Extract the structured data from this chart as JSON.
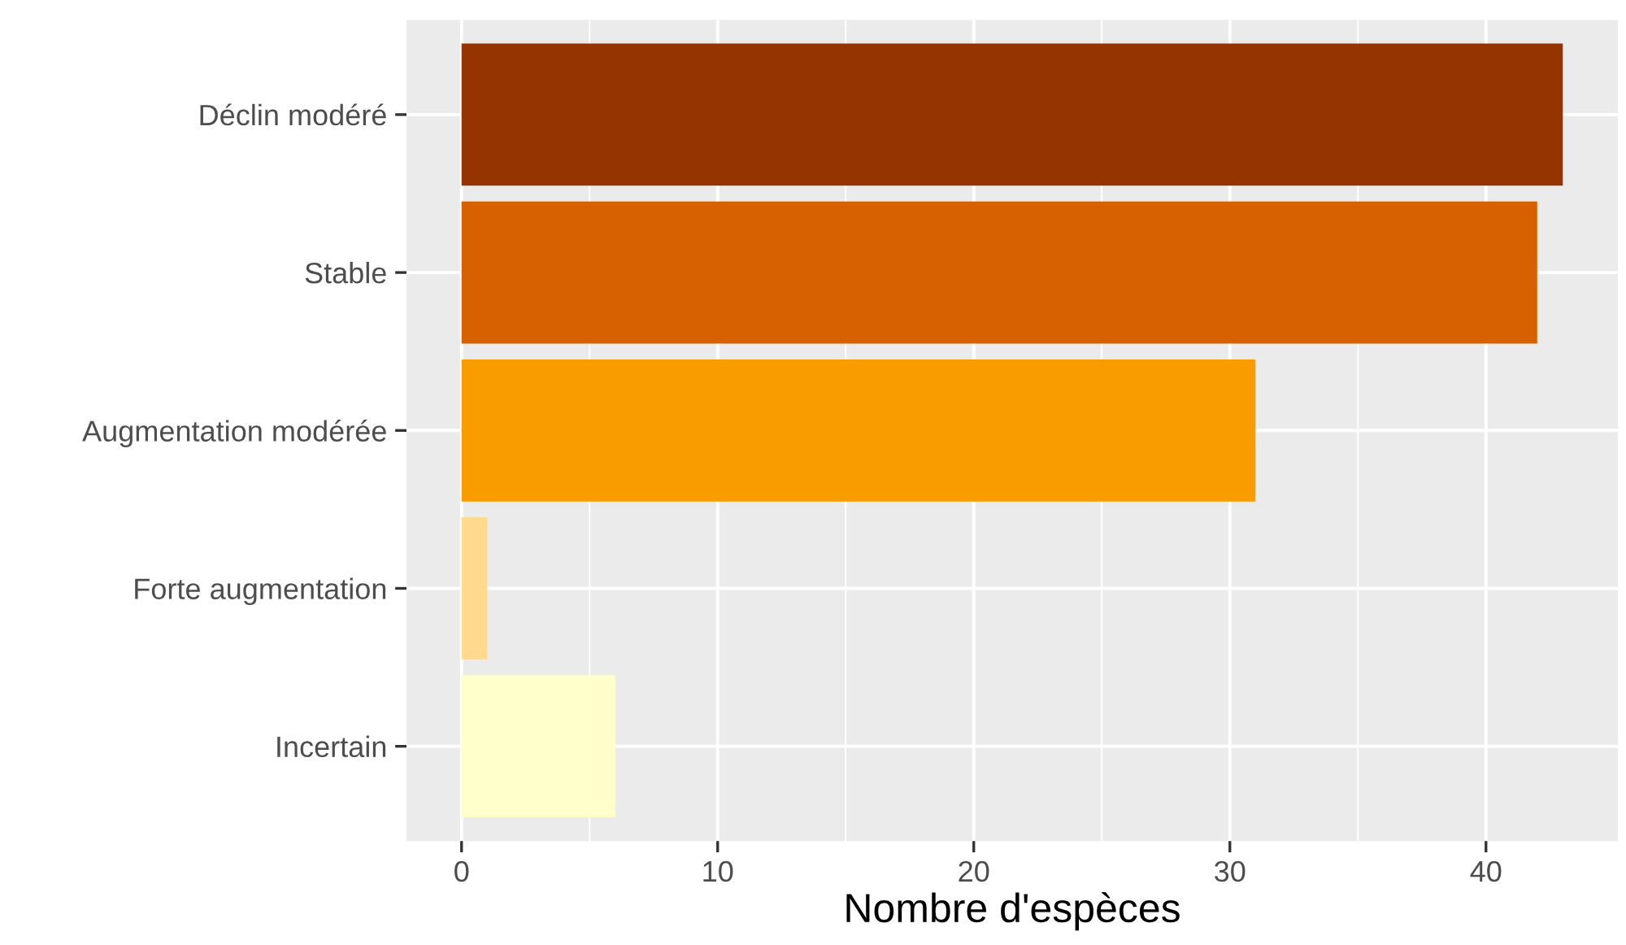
{
  "chart_data": {
    "type": "bar",
    "orientation": "horizontal",
    "xlabel": "Nombre d'espèces",
    "categories": [
      "Déclin modéré",
      "Stable",
      "Augmentation modérée",
      "Forte augmentation",
      "Incertain"
    ],
    "values": [
      43,
      42,
      31,
      1,
      6
    ],
    "colors": [
      "#953400",
      "#d76100",
      "#f89c00",
      "#fed98e",
      "#ffffcc"
    ],
    "xlim": [
      -2.15,
      45.15
    ],
    "xticks": [
      0,
      10,
      20,
      30,
      40
    ],
    "grid": true
  }
}
